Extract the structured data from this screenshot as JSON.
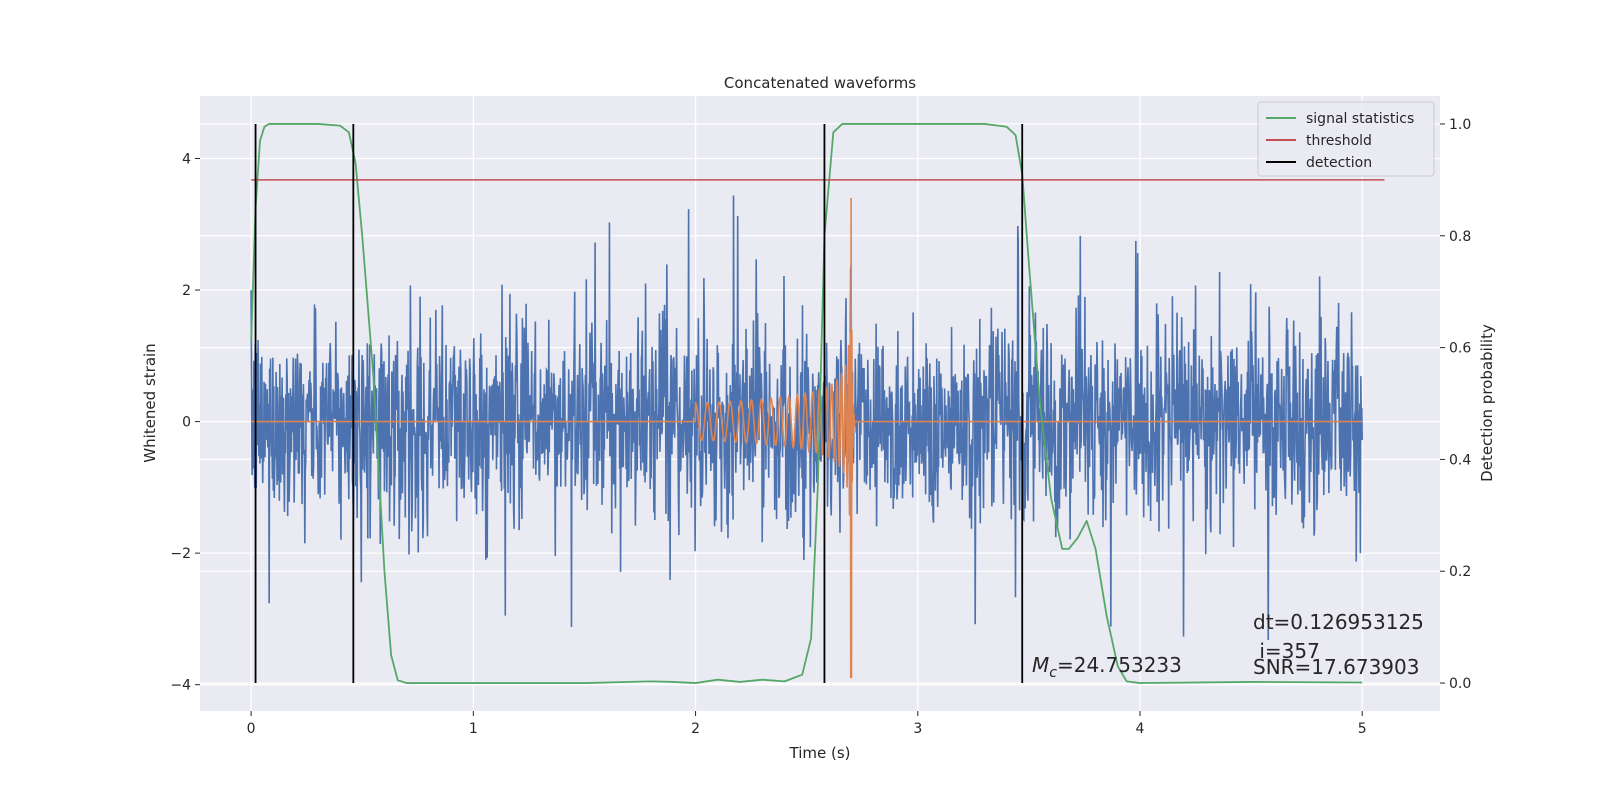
{
  "chart_data": {
    "type": "line",
    "title": "Concatenated waveforms",
    "xlabel": "Time (s)",
    "ylabel": "Whitened strain",
    "y2label": "Detection probability",
    "xlim": [
      -0.23,
      5.35
    ],
    "ylim": [
      -4.4,
      4.95
    ],
    "y2lim": [
      -0.05,
      1.05
    ],
    "xticks": [
      0,
      1,
      2,
      3,
      4,
      5
    ],
    "yticks": [
      -4,
      -2,
      0,
      2,
      4
    ],
    "y2ticks": [
      0.0,
      0.2,
      0.4,
      0.6,
      0.8,
      1.0
    ],
    "grid": true,
    "legend_position": "top-right",
    "legend": [
      {
        "label": "signal statistics",
        "color": "#55a868"
      },
      {
        "label": "threshold",
        "color": "#c44e52"
      },
      {
        "label": "detection",
        "color": "#000000"
      }
    ],
    "colors": {
      "strain": "#4c72b0",
      "template": "#dd8452",
      "statistics": "#55a868",
      "threshold": "#c44e52",
      "detection": "#000000"
    },
    "strain": {
      "x_range": [
        0,
        5
      ],
      "typical_band": [
        -1.6,
        1.6
      ],
      "peak_band": [
        -3.6,
        3.6
      ]
    },
    "template": {
      "chirp_start": 2.0,
      "merger_time": 2.7,
      "merger_peak": [
        -3.9,
        3.4
      ]
    },
    "signal_statistics": {
      "x": [
        0.0,
        0.02,
        0.04,
        0.06,
        0.08,
        0.1,
        0.2,
        0.3,
        0.4,
        0.44,
        0.47,
        0.5,
        0.55,
        0.6,
        0.63,
        0.66,
        0.7,
        1.0,
        1.5,
        1.8,
        1.9,
        2.0,
        2.1,
        2.2,
        2.3,
        2.4,
        2.48,
        2.52,
        2.55,
        2.58,
        2.62,
        2.66,
        2.7,
        3.0,
        3.3,
        3.4,
        3.44,
        3.47,
        3.5,
        3.55,
        3.6,
        3.65,
        3.68,
        3.72,
        3.76,
        3.8,
        3.85,
        3.9,
        3.94,
        4.0,
        4.5,
        5.0
      ],
      "y": [
        0.61,
        0.85,
        0.97,
        0.995,
        1.0,
        1.0,
        1.0,
        1.0,
        0.997,
        0.985,
        0.93,
        0.8,
        0.55,
        0.2,
        0.05,
        0.005,
        0.0,
        0.0,
        0.0,
        0.003,
        0.002,
        0.0,
        0.006,
        0.002,
        0.006,
        0.003,
        0.015,
        0.08,
        0.35,
        0.8,
        0.985,
        1.0,
        1.0,
        1.0,
        1.0,
        0.995,
        0.98,
        0.91,
        0.75,
        0.5,
        0.33,
        0.24,
        0.24,
        0.26,
        0.29,
        0.24,
        0.12,
        0.03,
        0.003,
        0.0,
        0.002,
        0.001
      ]
    },
    "threshold": {
      "value": 0.9,
      "x_range": [
        0.0,
        5.1
      ]
    },
    "detections": [
      0.02,
      0.46,
      2.58,
      3.47
    ],
    "annotations": {
      "mc": "=24.753233",
      "dt": "dt=0.126953125",
      "i": " i=357",
      "snr": "SNR=17.673903"
    }
  }
}
